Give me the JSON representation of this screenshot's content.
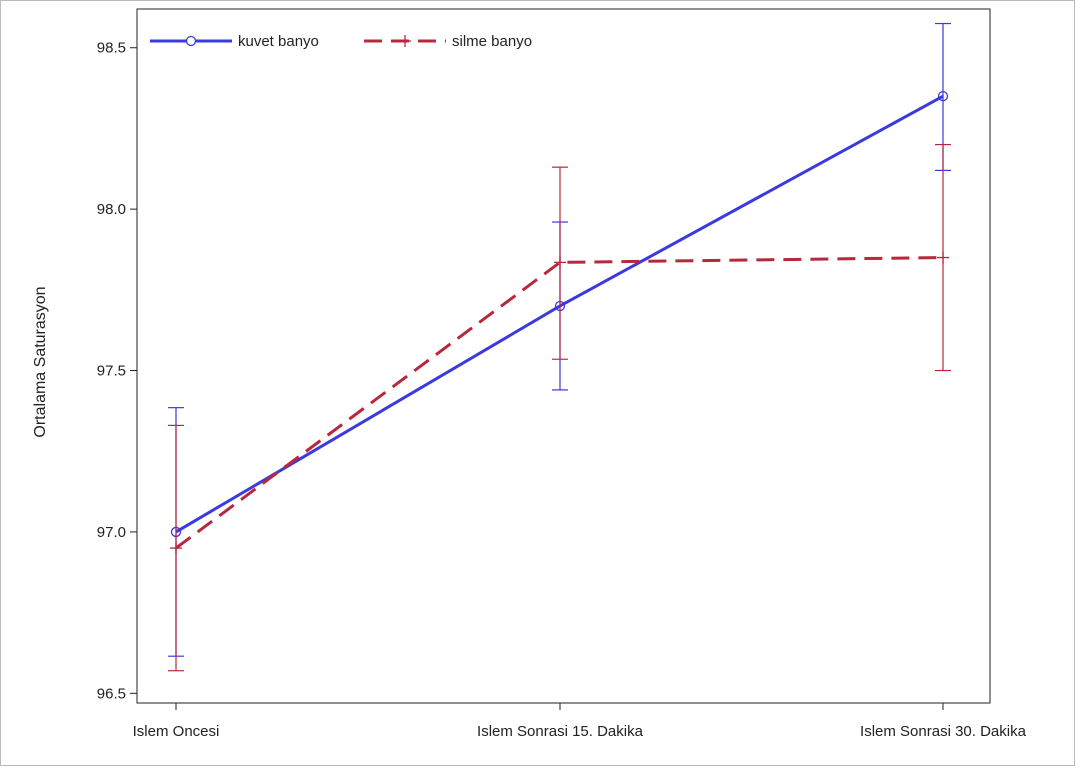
{
  "chart_data": {
    "type": "line",
    "title": "",
    "xlabel": "",
    "ylabel": "Ortalama Saturasyon",
    "categories": [
      "Islem Oncesi",
      "Islem Sonrasi 15. Dakika",
      "Islem Sonrasi 30. Dakika"
    ],
    "ylim": [
      96.47,
      98.62
    ],
    "yticks": [
      96.5,
      97.0,
      97.5,
      98.0,
      98.5
    ],
    "ytick_labels": [
      "96.5",
      "97.0",
      "97.5",
      "98.0",
      "98.5"
    ],
    "grid": false,
    "legend_position": "top-left",
    "series": [
      {
        "name": "kuvet banyo",
        "color": "#3a3ae0",
        "line_style": "solid",
        "marker": "circle",
        "values": [
          97.0,
          97.7,
          98.35
        ],
        "err_low": [
          96.615,
          97.44,
          98.12
        ],
        "err_high": [
          97.385,
          97.96,
          98.575
        ]
      },
      {
        "name": "silme banyo",
        "color": "#b8283c",
        "line_style": "dashed",
        "marker": "plus",
        "values": [
          96.95,
          97.835,
          97.85
        ],
        "err_low": [
          96.57,
          97.535,
          97.5
        ],
        "err_high": [
          97.33,
          98.13,
          98.2
        ]
      }
    ]
  }
}
